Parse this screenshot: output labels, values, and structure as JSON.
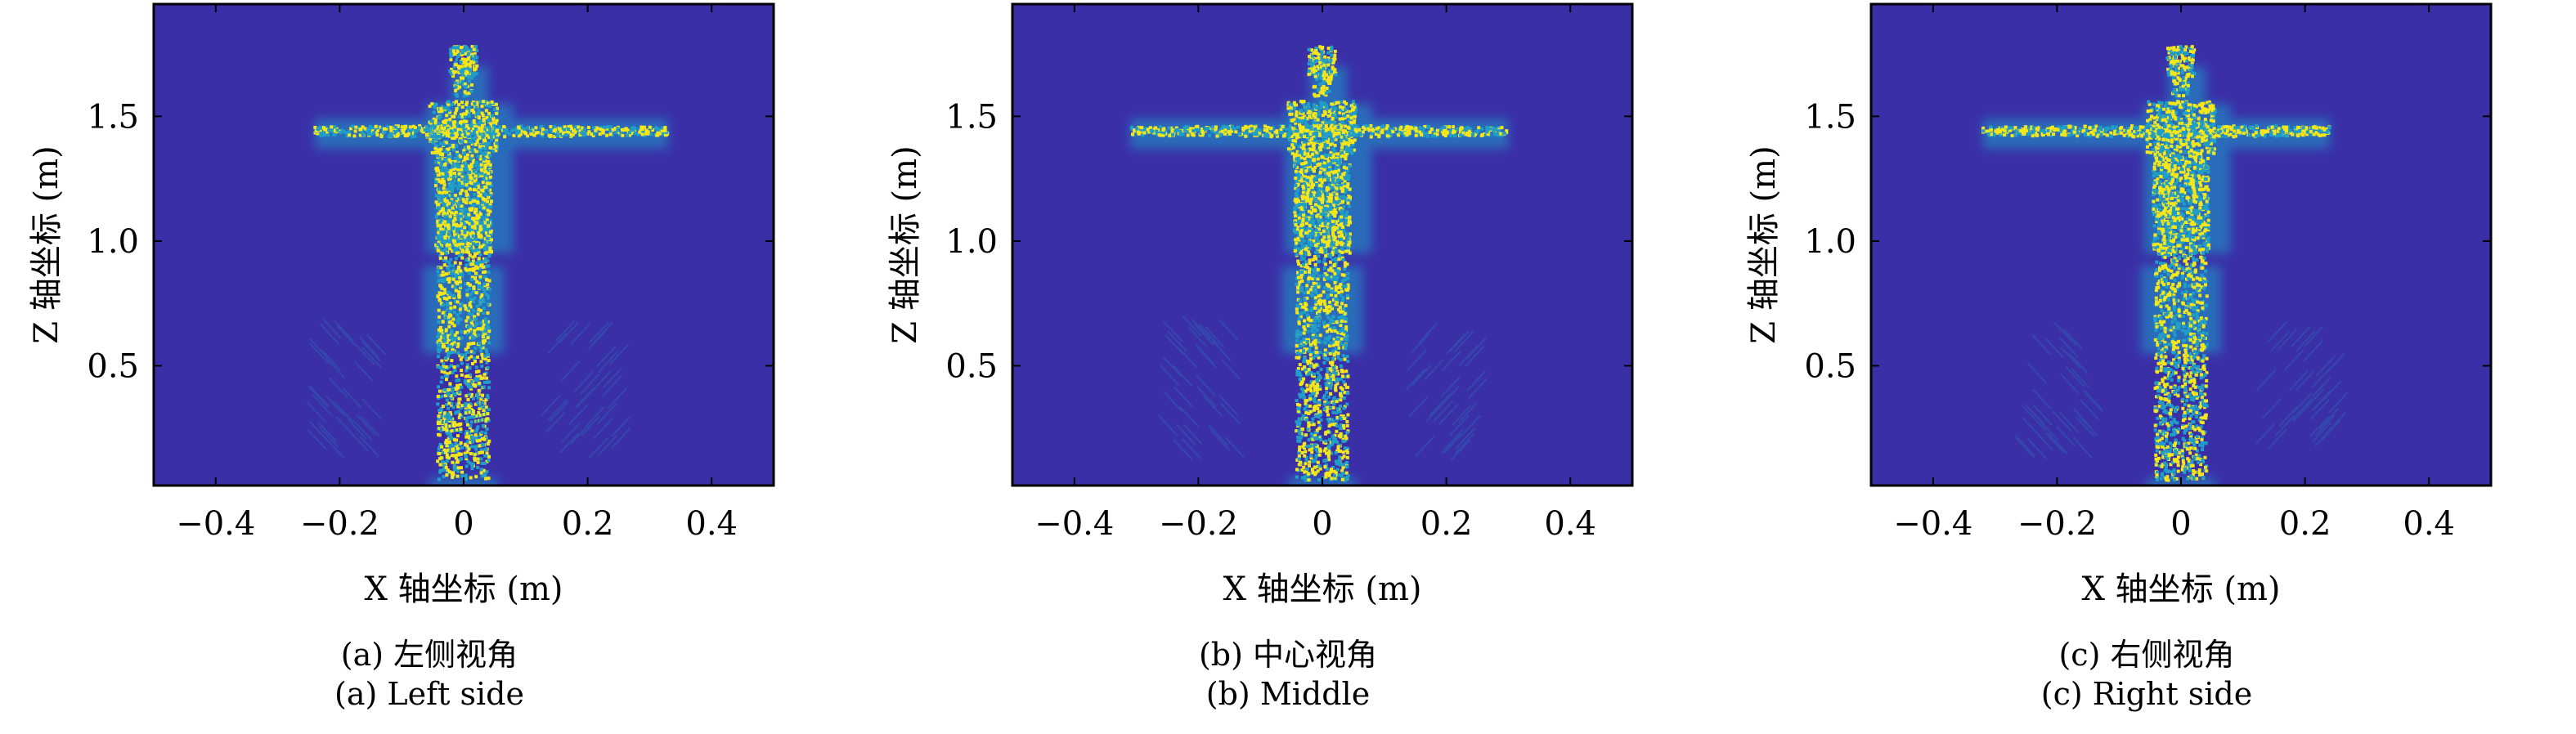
{
  "chart_data": [
    {
      "type": "heatmap",
      "xlabel": "X 轴坐标 (m)",
      "ylabel": "Z 轴坐标 (m)",
      "xlim": [
        -0.5,
        0.5
      ],
      "ylim": [
        0.02,
        1.95
      ],
      "xticks": [
        -0.4,
        -0.2,
        0,
        0.2,
        0.4
      ],
      "xtick_labels": [
        "−0.4",
        "−0.2",
        "0",
        "0.2",
        "0.4"
      ],
      "yticks": [
        0.5,
        1.0,
        1.5
      ],
      "ytick_labels": [
        "0.5",
        "1.0",
        "1.5"
      ],
      "arm_span_x": [
        -0.24,
        0.33
      ],
      "caption_zh": "(a) 左侧视角",
      "caption_en": "(a) Left side"
    },
    {
      "type": "heatmap",
      "xlabel": "X 轴坐标 (m)",
      "ylabel": "Z 轴坐标 (m)",
      "xlim": [
        -0.5,
        0.5
      ],
      "ylim": [
        0.02,
        1.95
      ],
      "xticks": [
        -0.4,
        -0.2,
        0,
        0.2,
        0.4
      ],
      "xtick_labels": [
        "−0.4",
        "−0.2",
        "0",
        "0.2",
        "0.4"
      ],
      "yticks": [
        0.5,
        1.0,
        1.5
      ],
      "ytick_labels": [
        "0.5",
        "1.0",
        "1.5"
      ],
      "arm_span_x": [
        -0.31,
        0.3
      ],
      "caption_zh": "(b) 中心视角",
      "caption_en": "(b) Middle"
    },
    {
      "type": "heatmap",
      "xlabel": "X 轴坐标 (m)",
      "ylabel": "Z 轴坐标 (m)",
      "xlim": [
        -0.5,
        0.5
      ],
      "ylim": [
        0.02,
        1.95
      ],
      "xticks": [
        -0.4,
        -0.2,
        0,
        0.2,
        0.4
      ],
      "xtick_labels": [
        "−0.4",
        "−0.2",
        "0",
        "0.2",
        "0.4"
      ],
      "yticks": [
        0.5,
        1.0,
        1.5
      ],
      "ytick_labels": [
        "0.5",
        "1.0",
        "1.5"
      ],
      "arm_span_x": [
        -0.32,
        0.24
      ],
      "caption_zh": "(c) 右侧视角",
      "caption_en": "(c) Right side"
    }
  ],
  "colors": {
    "background": "#3b2fa8",
    "body_low": "#1f9ec8",
    "body_high": "#f5e61a",
    "axis": "#000000"
  }
}
